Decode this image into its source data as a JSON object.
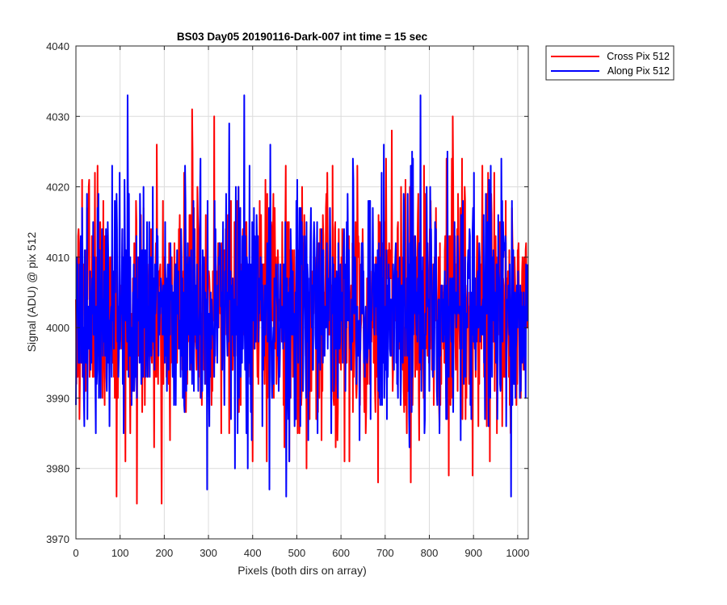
{
  "chart_data": {
    "type": "line",
    "title": "BS03 Day05 20190116-Dark-007 int time = 15 sec",
    "xlabel": "Pixels (both dirs on array)",
    "ylabel": "Signal (ADU) @ pix 512",
    "xlim": [
      0,
      1024
    ],
    "ylim": [
      3970,
      4040
    ],
    "xticks": [
      0,
      100,
      200,
      300,
      400,
      500,
      600,
      700,
      800,
      900,
      1000
    ],
    "yticks": [
      3970,
      3980,
      3990,
      4000,
      4010,
      4020,
      4030,
      4040
    ],
    "grid": true,
    "legend_position": "outside-top-right",
    "n_points": 1024,
    "series": [
      {
        "name": "Cross Pix 512",
        "color": "#ff0000",
        "mean": 4003,
        "min": 3975,
        "max": 4031,
        "values": []
      },
      {
        "name": "Along Pix 512",
        "color": "#0000ff",
        "mean": 4003,
        "min": 3976,
        "max": 4033,
        "values": []
      }
    ],
    "annotated_extremes": [
      {
        "series": "Cross Pix 512",
        "x": 263,
        "y": 4031
      },
      {
        "series": "Cross Pix 512",
        "x": 313,
        "y": 4030
      },
      {
        "series": "Cross Pix 512",
        "x": 853,
        "y": 4030
      },
      {
        "series": "Cross Pix 512",
        "x": 138,
        "y": 3975
      },
      {
        "series": "Cross Pix 512",
        "x": 194,
        "y": 3975
      },
      {
        "series": "Cross Pix 512",
        "x": 92,
        "y": 3976
      },
      {
        "series": "Along Pix 512",
        "x": 117,
        "y": 4033
      },
      {
        "series": "Along Pix 512",
        "x": 381,
        "y": 4033
      },
      {
        "series": "Along Pix 512",
        "x": 780,
        "y": 4033
      },
      {
        "series": "Along Pix 512",
        "x": 297,
        "y": 3977
      },
      {
        "series": "Along Pix 512",
        "x": 985,
        "y": 3976
      },
      {
        "series": "Along Pix 512",
        "x": 438,
        "y": 3977
      }
    ]
  }
}
